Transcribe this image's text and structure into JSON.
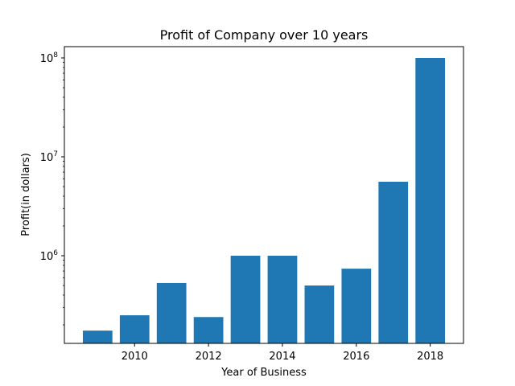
{
  "chart_data": {
    "type": "bar",
    "title": "Profit of Company over 10 years",
    "xlabel": "Year of Business",
    "ylabel": "Profit(in dollars)",
    "y_scale": "log",
    "ylim": [
      130000,
      130000000
    ],
    "xlim": [
      2008.1,
      2018.9
    ],
    "x_ticks": [
      2010,
      2012,
      2014,
      2016,
      2018
    ],
    "y_ticks": [
      {
        "value": 1000000,
        "base": "10",
        "exp": "6"
      },
      {
        "value": 10000000,
        "base": "10",
        "exp": "7"
      },
      {
        "value": 100000000,
        "base": "10",
        "exp": "8"
      }
    ],
    "bar_color": "#1f77b4",
    "x": [
      2009,
      2010,
      2011,
      2012,
      2013,
      2014,
      2015,
      2016,
      2017,
      2018
    ],
    "values": [
      175000,
      250000,
      530000,
      240000,
      1000000,
      1000000,
      500000,
      740000,
      5600000,
      100000000
    ],
    "bar_width": 0.8
  }
}
